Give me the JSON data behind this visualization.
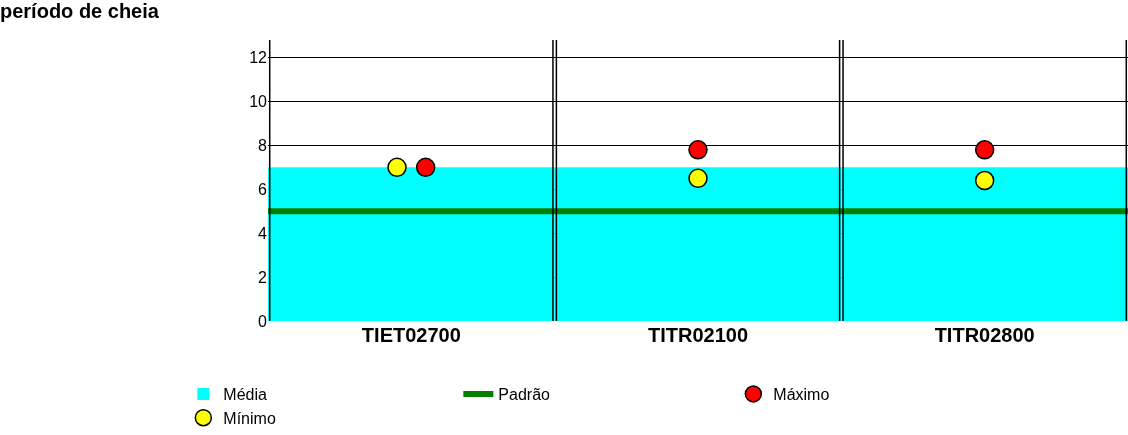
{
  "chart_data": {
    "type": "scatter",
    "title": "período de cheia",
    "categories": [
      "TIET02700",
      "TITR02100",
      "TITR02800"
    ],
    "ylim": [
      0,
      12.8
    ],
    "yticks": [
      0,
      2,
      4,
      6,
      8,
      10,
      12
    ],
    "grid": "y",
    "legend": "bottom",
    "marker": "circle",
    "series": [
      {
        "name": "Média",
        "type": "bar",
        "color": "#00ffff",
        "values": [
          7.0,
          7.0,
          7.0
        ]
      },
      {
        "name": "Máximo",
        "color": "#ff0000",
        "values": [
          7.0,
          7.8,
          7.8
        ]
      },
      {
        "name": "Mínimo",
        "color": "#ffff00",
        "values": [
          7.0,
          6.5,
          6.4
        ]
      }
    ],
    "ref_lines": [
      {
        "axis": "y",
        "value": 5,
        "label": "Padrão",
        "color": "#008000"
      }
    ]
  }
}
